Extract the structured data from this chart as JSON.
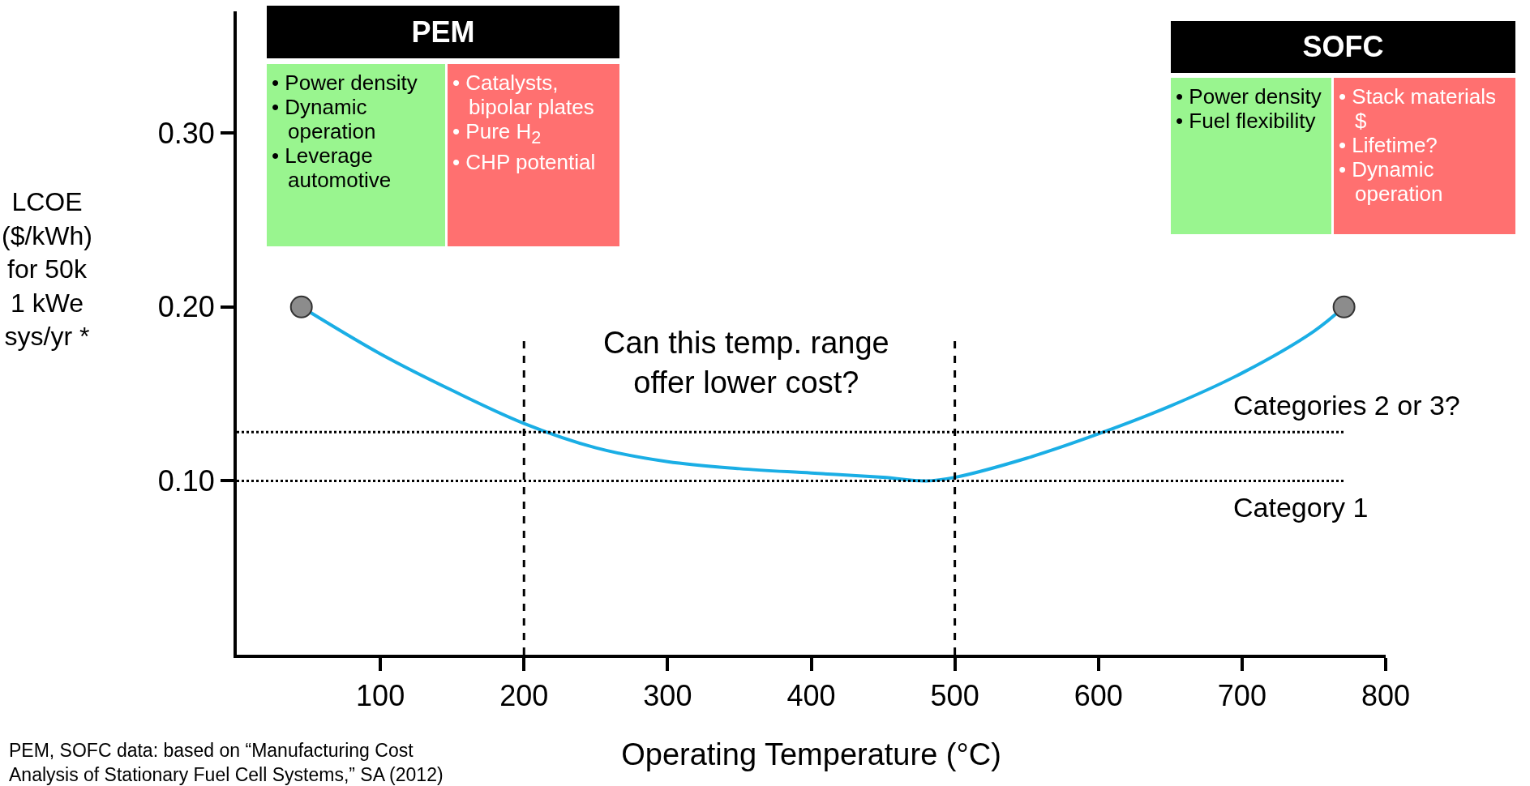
{
  "chart_data": {
    "type": "line",
    "xlabel": "Operating Temperature (°C)",
    "ylabel": "LCOE\n($/kWh)\nfor 50k\n1 kWe\nsys/yr *",
    "xlim": [
      0,
      800
    ],
    "xticks": [
      100,
      200,
      300,
      400,
      500,
      600,
      700,
      800
    ],
    "ylim": [
      0,
      0.37
    ],
    "yticks": [
      {
        "value": 0.1,
        "label": "0.10"
      },
      {
        "value": 0.2,
        "label": "0.20"
      },
      {
        "value": 0.3,
        "label": "0.30"
      }
    ],
    "grid": false,
    "series": [
      {
        "color": "#1aaee5",
        "marker": "none",
        "line_style": "solid",
        "x": [
          45,
          100,
          150,
          200,
          250,
          300,
          350,
          400,
          450,
          480,
          500,
          550,
          600,
          650,
          700,
          750,
          771
        ],
        "values": [
          0.2,
          0.173,
          0.152,
          0.133,
          0.119,
          0.111,
          0.107,
          0.1045,
          0.102,
          0.1,
          0.102,
          0.113,
          0.127,
          0.143,
          0.162,
          0.186,
          0.2
        ]
      },
      {
        "type": "scatter",
        "color": "#8c8c8c",
        "marker": "circle",
        "x": [
          45,
          771
        ],
        "values": [
          0.2,
          0.2
        ]
      }
    ],
    "ref_lines": [
      {
        "axis": "y",
        "value": 0.128,
        "label": "Categories 2 or 3?",
        "line_style": "dotted"
      },
      {
        "axis": "y",
        "value": 0.1,
        "label": "Category 1",
        "line_style": "dotted"
      },
      {
        "axis": "x",
        "value": 200,
        "line_style": "dashed"
      },
      {
        "axis": "x",
        "value": 500,
        "line_style": "dashed"
      }
    ],
    "annotations": [
      "Can this temp. range\noffer lower cost?",
      "PEM",
      "• Power density\n• Dynamic operation\n• Leverage automotive",
      "• Catalysts, bipolar plates\n• Pure H$_{2}$\n• CHP potential",
      "SOFC",
      "• Power density\n• Fuel flexibility",
      "• Stack materials $\n• Lifetime?\n• Dynamic operation",
      "PEM, SOFC data: based on “Manufacturing Cost\nAnalysis of Stationary Fuel Cell Systems,” SA (2012)"
    ]
  }
}
